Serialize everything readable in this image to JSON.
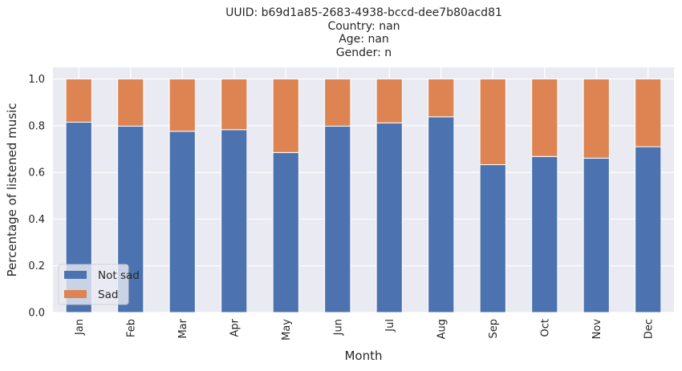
{
  "chart_data": {
    "type": "bar",
    "stacked": true,
    "title_lines": [
      "UUID: b69d1a85-2683-4938-bccd-dee7b80acd81",
      "Country: nan",
      "Age: nan",
      "Gender: n"
    ],
    "xlabel": "Month",
    "ylabel": "Percentage of listened music",
    "ylim": [
      0,
      1.05
    ],
    "yticks": [
      "0.0",
      "0.2",
      "0.4",
      "0.6",
      "0.8",
      "1.0"
    ],
    "grid": true,
    "legend_position": "lower-left",
    "categories": [
      "Jan",
      "Feb",
      "Mar",
      "Apr",
      "May",
      "Jun",
      "Jul",
      "Aug",
      "Sep",
      "Oct",
      "Nov",
      "Dec"
    ],
    "series": [
      {
        "name": "Not sad",
        "color": "#4c72b0",
        "values": [
          0.815,
          0.798,
          0.776,
          0.783,
          0.685,
          0.798,
          0.812,
          0.838,
          0.633,
          0.668,
          0.661,
          0.71
        ]
      },
      {
        "name": "Sad",
        "color": "#dd8452",
        "values": [
          0.185,
          0.202,
          0.224,
          0.217,
          0.315,
          0.202,
          0.188,
          0.162,
          0.367,
          0.332,
          0.339,
          0.29
        ]
      }
    ]
  }
}
